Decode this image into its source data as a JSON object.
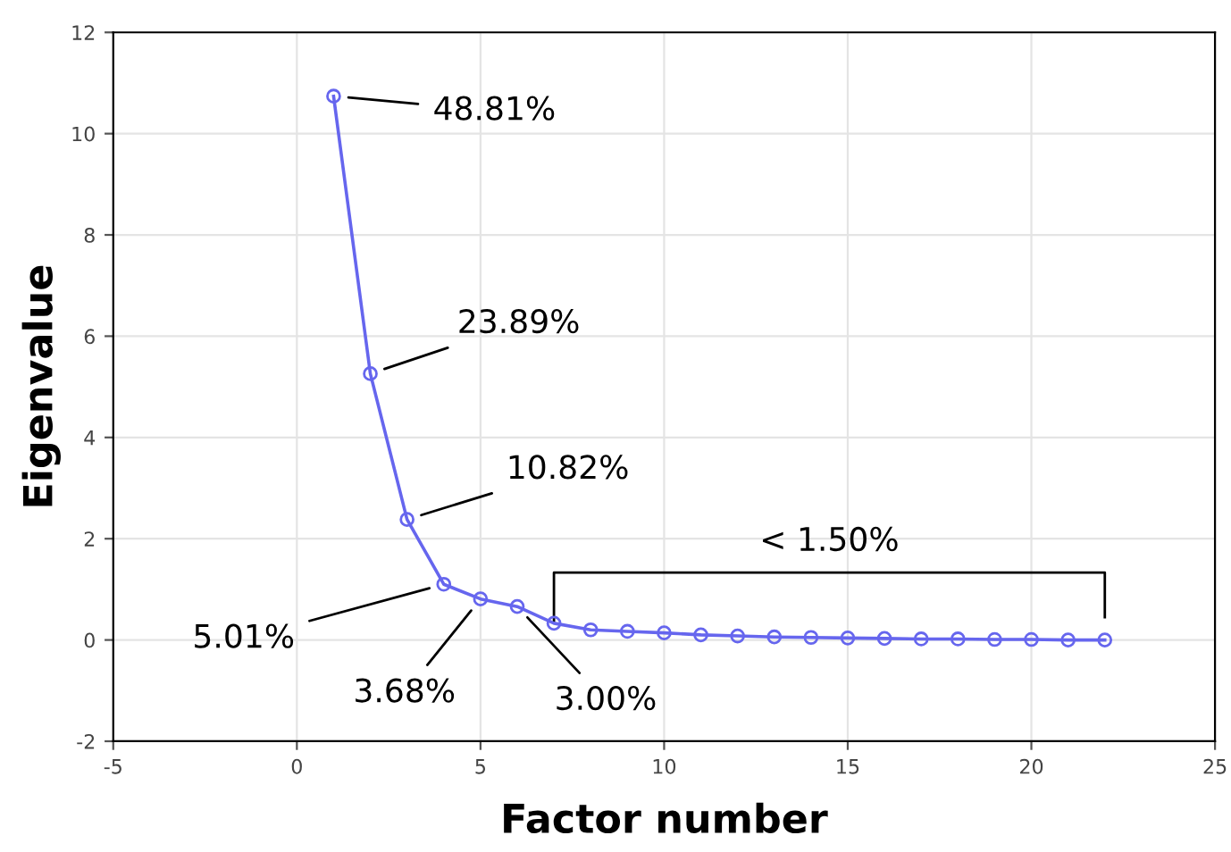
{
  "chart_data": {
    "type": "line",
    "xlabel": "Factor number",
    "ylabel": "Eigenvalue",
    "x": [
      1,
      2,
      3,
      4,
      5,
      6,
      7,
      8,
      9,
      10,
      11,
      12,
      13,
      14,
      15,
      16,
      17,
      18,
      19,
      20,
      21,
      22
    ],
    "series": [
      {
        "color": "#6666ee",
        "values": [
          10.74,
          5.26,
          2.38,
          1.1,
          0.81,
          0.66,
          0.33,
          0.2,
          0.17,
          0.14,
          0.1,
          0.08,
          0.06,
          0.05,
          0.04,
          0.03,
          0.02,
          0.02,
          0.01,
          0.01,
          0.0,
          0.0
        ]
      }
    ],
    "xlim": [
      -5,
      25
    ],
    "xticks": [
      -5,
      0,
      5,
      10,
      15,
      20,
      25
    ],
    "ylim": [
      -2,
      12
    ],
    "yticks": [
      -2,
      0,
      2,
      4,
      6,
      8,
      10,
      12
    ],
    "grid": true,
    "marker": "circle",
    "line_style": "solid",
    "annotations": [
      {
        "text": "48.81%",
        "x": 1,
        "y": 10.74
      },
      {
        "text": "23.89%",
        "x": 2,
        "y": 5.26
      },
      {
        "text": "10.82%",
        "x": 3,
        "y": 2.38
      },
      {
        "text": "5.01%",
        "x": 4,
        "y": 1.1
      },
      {
        "text": "3.68%",
        "x": 5,
        "y": 0.81
      },
      {
        "text": "3.00%",
        "x": 6,
        "y": 0.66
      },
      "< 1.50%"
    ]
  }
}
